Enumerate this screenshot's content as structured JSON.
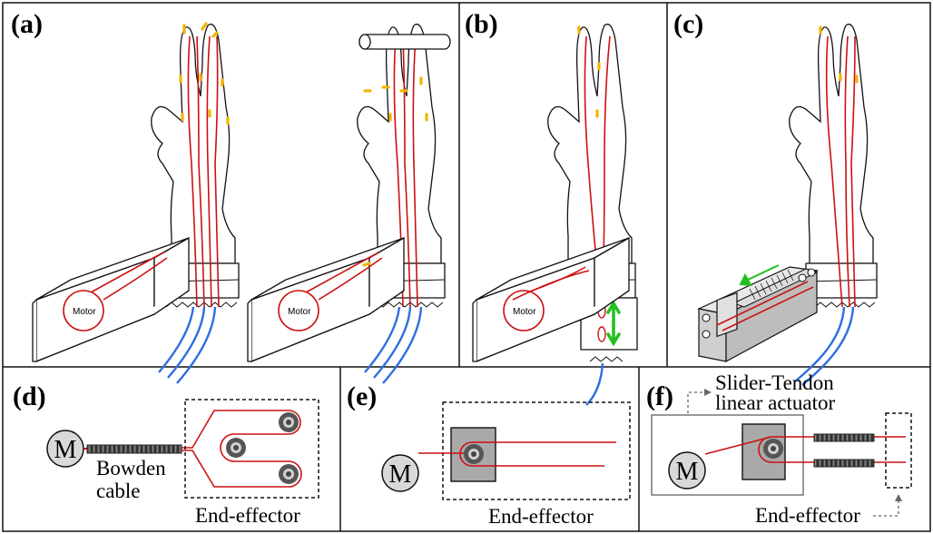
{
  "panels": {
    "a": {
      "label": "(a)"
    },
    "b": {
      "label": "(b)"
    },
    "c": {
      "label": "(c)"
    },
    "d": {
      "label": "(d)"
    },
    "e": {
      "label": "(e)"
    },
    "f": {
      "label": "(f)"
    }
  },
  "motor_label": "Motor",
  "motor_symbol": "M",
  "bowden_label_line1": "Bowden",
  "bowden_label_line2": "cable",
  "end_effector_label": "End-effector",
  "slider_label_line1": "Slider-Tendon",
  "slider_label_line2": "linear actuator",
  "colors": {
    "tendon": "#cc1111",
    "bowden": "#2f6fe0",
    "joint": "#f2b400",
    "arrow": "#22c01e",
    "block": "#a9a9a9",
    "pulley": "#a0a0a0"
  }
}
